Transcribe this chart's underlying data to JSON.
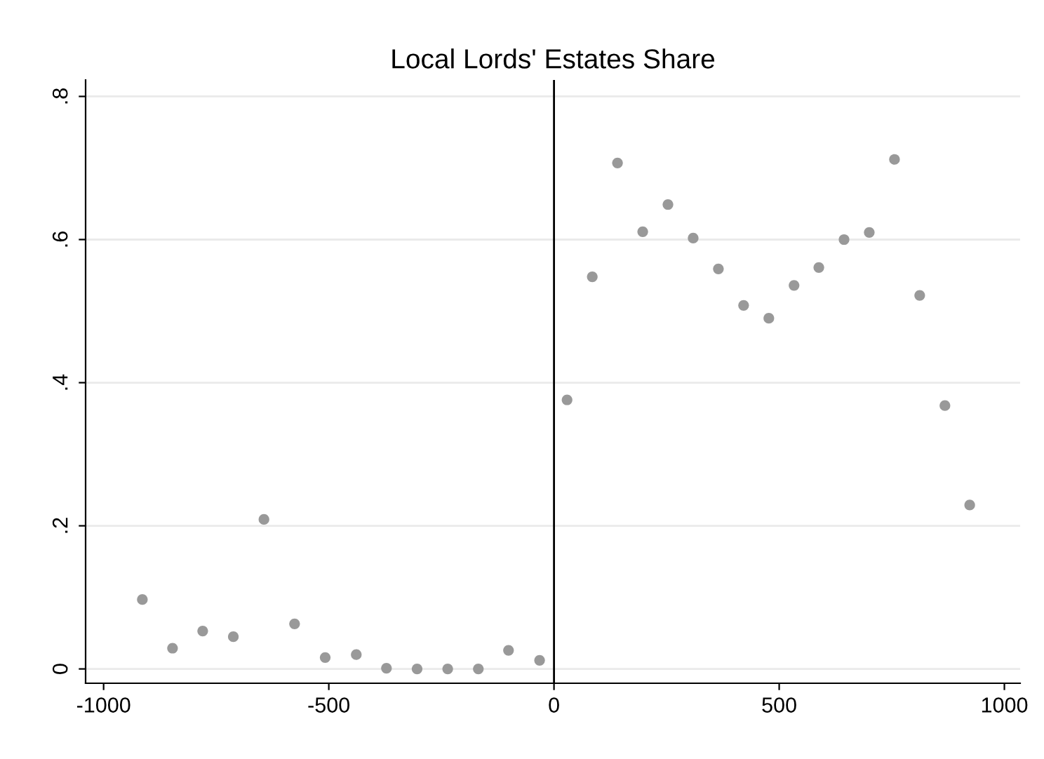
{
  "chart_data": {
    "type": "scatter",
    "title": "Local Lords' Estates Share",
    "x": [
      -914,
      -847,
      -780,
      -712,
      -644,
      -576,
      -508,
      -439,
      -372,
      -304,
      -236,
      -168,
      -101,
      -32,
      29,
      85,
      141,
      197,
      253,
      309,
      365,
      421,
      477,
      533,
      588,
      644,
      700,
      756,
      812,
      868,
      923
    ],
    "series": [
      {
        "color": "#999999",
        "values": [
          0.097,
          0.029,
          0.053,
          0.045,
          0.209,
          0.063,
          0.016,
          0.02,
          0.001,
          0,
          0,
          0,
          0.026,
          0.012,
          0.376,
          0.548,
          0.707,
          0.611,
          0.649,
          0.602,
          0.559,
          0.508,
          0.49,
          0.536,
          0.561,
          0.6,
          0.61,
          0.712,
          0.522,
          0.368,
          0.229
        ]
      }
    ],
    "marker": "circle",
    "xlim": [
      -1040,
      1035
    ],
    "ylim": [
      -0.02,
      0.823
    ],
    "xticks": [
      -1000,
      -500,
      0,
      500,
      1000
    ],
    "yticks": [
      {
        "value": 0,
        "label": "0"
      },
      {
        "value": 0.2,
        "label": ".2"
      },
      {
        "value": 0.4,
        "label": ".4"
      },
      {
        "value": 0.6,
        "label": ".6"
      },
      {
        "value": 0.8,
        "label": ".8"
      }
    ],
    "grid": "y",
    "ref_lines": [
      {
        "axis": "x",
        "value": 0,
        "color": "#000000"
      }
    ]
  }
}
